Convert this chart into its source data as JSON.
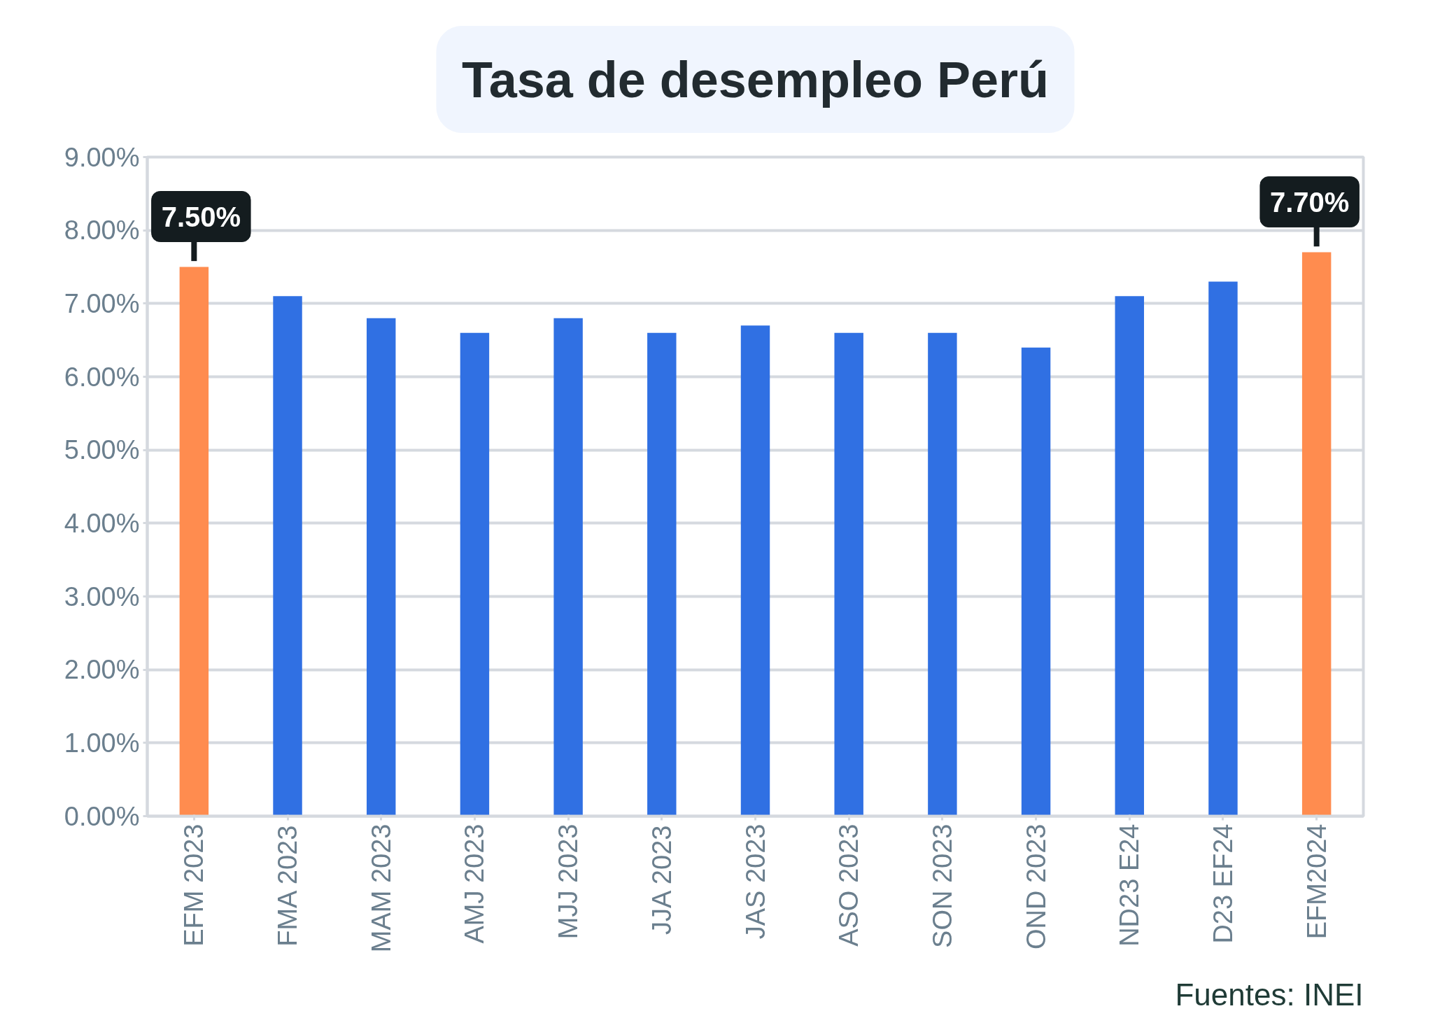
{
  "chart_data": {
    "type": "bar",
    "title": "Tasa de desempleo Perú",
    "categories": [
      "EFM 2023",
      "FMA 2023",
      "MAM 2023",
      "AMJ 2023",
      "MJJ 2023",
      "JJA 2023",
      "JAS 2023",
      "ASO 2023",
      "SON 2023",
      "OND 2023",
      "ND23 E24",
      "D23 EF24",
      "EFM2024"
    ],
    "values": [
      7.5,
      7.1,
      6.8,
      6.6,
      6.8,
      6.6,
      6.7,
      6.6,
      6.6,
      6.4,
      7.1,
      7.3,
      7.7
    ],
    "colors": [
      "#ff8c4f",
      "#3070e3",
      "#3070e3",
      "#3070e3",
      "#3070e3",
      "#3070e3",
      "#3070e3",
      "#3070e3",
      "#3070e3",
      "#3070e3",
      "#3070e3",
      "#3070e3",
      "#ff8c4f"
    ],
    "value_labels": [
      "7.50%",
      null,
      null,
      null,
      null,
      null,
      null,
      null,
      null,
      null,
      null,
      null,
      "7.70%"
    ],
    "ylim": [
      0,
      9
    ],
    "yticks": [
      {
        "value": 0,
        "label": "0.00%"
      },
      {
        "value": 1,
        "label": "1.00%"
      },
      {
        "value": 2,
        "label": "2.00%"
      },
      {
        "value": 3,
        "label": "3.00%"
      },
      {
        "value": 4,
        "label": "4.00%"
      },
      {
        "value": 5,
        "label": "5.00%"
      },
      {
        "value": 6,
        "label": "6.00%"
      },
      {
        "value": 7,
        "label": "7.00%"
      },
      {
        "value": 8,
        "label": "8.00%"
      },
      {
        "value": 9,
        "label": "9.00%"
      }
    ],
    "grid": "y",
    "annotations": [
      "Fuentes: INEI"
    ]
  }
}
